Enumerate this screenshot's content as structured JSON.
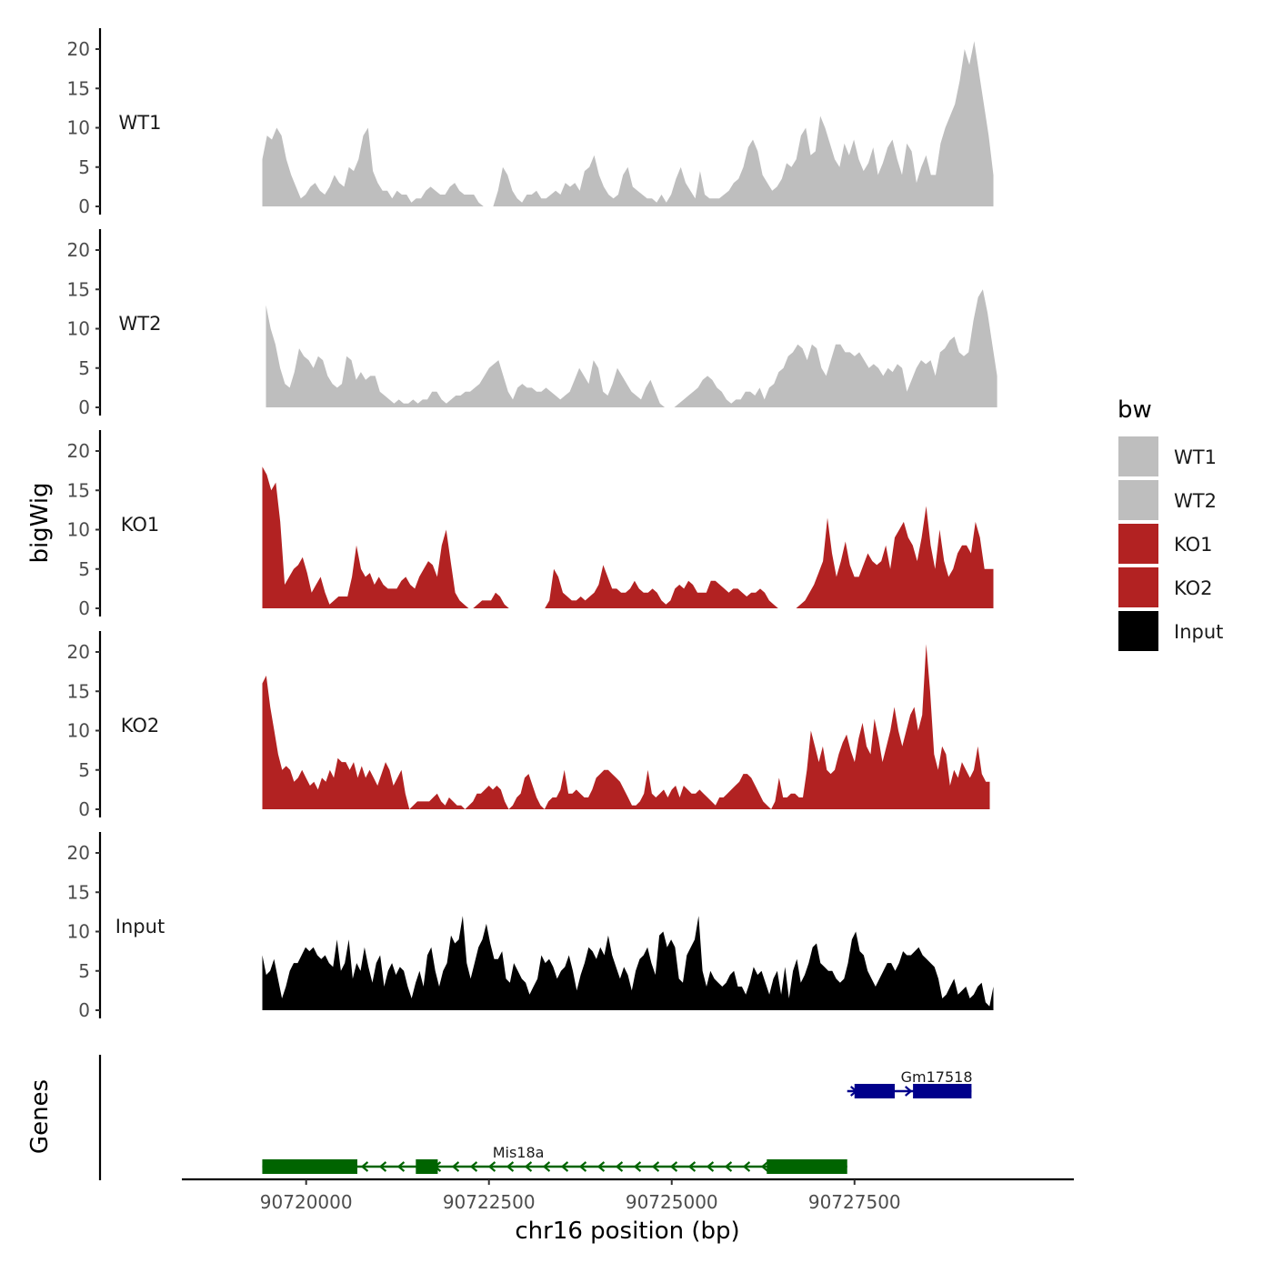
{
  "chart_data": {
    "type": "area",
    "ylabel": "bigWig",
    "xlabel": "chr16 position (bp)",
    "genes_label": "Genes",
    "xlim": [
      90718300,
      90730500
    ],
    "ylim": [
      0,
      22
    ],
    "x_ticks": [
      90720000,
      90722500,
      90725000,
      90727500
    ],
    "y_ticks": [
      0,
      5,
      10,
      15,
      20
    ],
    "legend": {
      "title": "bw",
      "entries": [
        {
          "label": "WT1",
          "color": "#bebebe"
        },
        {
          "label": "WT2",
          "color": "#bebebe"
        },
        {
          "label": "KO1",
          "color": "#b22222"
        },
        {
          "label": "KO2",
          "color": "#b22222"
        },
        {
          "label": "Input",
          "color": "#000000"
        }
      ]
    },
    "tracks": [
      {
        "name": "WT1",
        "color": "#bebebe",
        "x_start": 90719400,
        "x_end": 90729400,
        "values": [
          6,
          9,
          8.5,
          10,
          9,
          6,
          4,
          2.5,
          1,
          1.5,
          2.5,
          3,
          2,
          1.5,
          2.5,
          4,
          3,
          2.5,
          5,
          4.5,
          6,
          9,
          10,
          4.5,
          3,
          2,
          2,
          1,
          2,
          1.5,
          1.5,
          0.5,
          1,
          1,
          2,
          2.5,
          2,
          1.5,
          1.5,
          2.5,
          3,
          2,
          1.5,
          1.5,
          1.5,
          0.5,
          0,
          0,
          0,
          2,
          5,
          4,
          2,
          1,
          0.5,
          1.5,
          1.5,
          2,
          1,
          1,
          1.5,
          2,
          1.5,
          3,
          2.5,
          3,
          2,
          4.5,
          5,
          6.5,
          4,
          2.5,
          1.5,
          1,
          1.5,
          4,
          5,
          2.5,
          2,
          1.5,
          1,
          1,
          0.5,
          1.5,
          0.5,
          1.5,
          3.5,
          5,
          3,
          2,
          1,
          4.5,
          1.5,
          1,
          1,
          1,
          1.5,
          2,
          3,
          3.5,
          5,
          7.5,
          8.5,
          7,
          4,
          3,
          2,
          2.5,
          3.5,
          5.5,
          5,
          6,
          9,
          10,
          6.5,
          7,
          11.5,
          10,
          8,
          6,
          5,
          8,
          6.5,
          8.5,
          6,
          4.5,
          5.5,
          7.5,
          4,
          5.5,
          7.5,
          8.5,
          6,
          4,
          8,
          7,
          3,
          5,
          6.5,
          4,
          4,
          8,
          10,
          11.5,
          13,
          16,
          20,
          18,
          21,
          17,
          13,
          9,
          4
        ]
      },
      {
        "name": "WT2",
        "color": "#bebebe",
        "x_start": 90719450,
        "x_end": 90729450,
        "values": [
          13,
          10,
          8,
          5,
          3,
          2.5,
          4.5,
          7.5,
          6.5,
          6,
          5,
          6.5,
          6,
          4,
          3,
          2.5,
          3,
          6.5,
          6,
          3.5,
          4.5,
          3.5,
          4,
          4,
          2,
          1.5,
          1,
          0.5,
          1,
          0.5,
          0.5,
          1,
          0.5,
          1,
          1,
          2,
          2,
          1,
          0.5,
          1,
          1.5,
          1.5,
          2,
          2,
          2.5,
          3,
          4,
          5,
          5.5,
          6,
          4,
          2,
          1,
          2.5,
          3,
          2.5,
          2.5,
          2,
          2,
          2.5,
          2,
          1.5,
          1,
          1.5,
          2,
          3.5,
          5,
          4,
          3,
          6,
          5,
          2,
          1.5,
          3,
          5,
          4,
          3,
          2,
          1.5,
          1,
          2.5,
          3.5,
          2,
          0.5,
          0,
          0,
          0,
          0.5,
          1,
          1.5,
          2,
          2.5,
          3.5,
          4,
          3.5,
          2.5,
          2,
          1,
          0.5,
          1,
          1,
          2,
          2,
          1.5,
          2.5,
          1,
          2.5,
          3,
          4.5,
          5,
          6.5,
          7,
          8,
          7.5,
          6,
          8,
          7.5,
          5,
          4,
          6,
          8,
          8,
          7,
          7,
          6.5,
          7,
          6,
          5,
          5.5,
          5,
          4,
          5,
          4.5,
          5.5,
          5,
          2,
          3.5,
          5,
          6,
          5.5,
          6,
          4,
          7,
          7.5,
          8.5,
          9,
          7,
          6.5,
          7,
          11,
          14,
          15,
          12,
          8,
          4
        ]
      },
      {
        "name": "KO1",
        "color": "#b22222",
        "x_start": 90719400,
        "x_end": 90729400,
        "values": [
          18,
          17,
          15,
          16,
          11,
          3,
          4,
          5,
          5.5,
          6.5,
          4.5,
          2,
          3,
          4,
          2,
          0.5,
          1,
          1.5,
          1.5,
          1.5,
          4,
          8,
          5,
          4,
          4.5,
          3,
          4,
          3,
          2.5,
          2.5,
          2.5,
          3.5,
          4,
          3,
          2.5,
          4,
          5,
          6,
          5.5,
          4,
          8,
          10,
          6,
          2,
          1,
          0.5,
          0,
          0,
          0.5,
          1,
          1,
          1,
          2,
          1.5,
          0.5,
          0,
          0,
          0,
          0,
          0,
          0,
          0,
          0,
          0,
          1,
          5,
          4,
          2,
          1.5,
          1,
          1,
          1.5,
          1,
          1.5,
          2,
          3,
          5.5,
          4,
          2.5,
          2.5,
          2,
          2,
          2.5,
          3.5,
          2.5,
          2,
          2,
          2.5,
          2,
          1,
          0.5,
          1,
          2.5,
          3,
          2.5,
          3.5,
          3,
          2,
          2,
          2,
          3.5,
          3.5,
          3,
          2.5,
          2,
          2.5,
          2.5,
          2,
          1.5,
          2,
          2,
          2.5,
          2,
          1,
          0.5,
          0,
          0,
          0,
          0,
          0,
          0.5,
          1,
          2,
          3,
          4.5,
          6,
          11.5,
          7,
          4,
          6,
          8.5,
          5.5,
          4,
          4,
          5.5,
          7,
          6,
          5.5,
          6,
          8,
          5,
          9,
          10,
          11,
          9,
          8,
          6,
          9,
          13,
          8,
          5,
          10,
          6,
          4,
          5,
          7,
          8,
          8,
          7,
          11,
          9,
          5,
          5,
          5
        ]
      },
      {
        "name": "KO2",
        "color": "#b22222",
        "x_start": 90719400,
        "x_end": 90729350,
        "values": [
          16,
          17,
          13,
          10,
          7,
          5,
          5.5,
          5,
          3.5,
          4,
          5,
          4,
          3,
          3.5,
          2.5,
          4,
          3.5,
          5,
          4,
          6.5,
          6,
          6,
          5,
          6,
          4,
          5.5,
          4,
          5,
          4,
          3,
          4.5,
          6,
          5,
          3,
          4,
          5,
          2,
          0,
          0.5,
          1,
          1,
          1,
          1,
          1.5,
          2,
          1,
          0.5,
          1.5,
          1,
          0.5,
          0.5,
          0,
          0.5,
          1,
          2,
          2,
          2.5,
          3,
          2.5,
          3,
          2.5,
          1,
          0,
          0.5,
          1.5,
          2,
          4,
          4.5,
          3,
          1.5,
          0.5,
          0,
          1,
          1.5,
          1.5,
          2.5,
          5,
          2,
          2,
          2.5,
          2,
          1.5,
          1.5,
          2.5,
          4,
          4.5,
          5,
          5,
          4.5,
          4,
          3.5,
          2.5,
          1.5,
          0.5,
          0.5,
          1,
          2,
          5,
          2,
          1.5,
          2,
          2.5,
          1.5,
          2.5,
          3,
          1.5,
          3,
          2.5,
          2,
          2,
          2.5,
          2,
          1.5,
          1,
          0.5,
          1.5,
          1.5,
          2,
          2.5,
          3,
          3.5,
          4.5,
          4.5,
          4,
          3,
          2,
          1,
          0.5,
          0,
          1,
          4,
          1.5,
          1.5,
          2,
          2,
          1.5,
          1.5,
          5,
          10,
          8,
          6,
          8,
          5,
          4.5,
          5,
          7,
          8.5,
          9.5,
          7.5,
          6,
          9,
          11,
          8,
          7,
          11.5,
          9,
          6,
          8,
          10,
          13,
          10,
          8,
          10,
          12,
          13,
          10,
          12,
          21,
          15,
          7,
          5,
          8,
          7,
          3,
          5,
          4,
          6,
          5,
          4,
          5,
          8,
          4.5,
          3.5,
          3.5
        ]
      },
      {
        "name": "Input",
        "color": "#000000",
        "x_start": 90719400,
        "x_end": 90729400,
        "values": [
          7,
          4.5,
          5,
          6.5,
          4,
          1.5,
          3,
          5,
          6,
          6,
          7,
          8,
          7.5,
          8,
          7,
          6.5,
          7,
          6,
          5.5,
          9,
          5,
          6,
          9,
          4,
          6,
          5,
          8,
          5.5,
          3.5,
          6,
          7,
          3,
          5,
          6,
          4.5,
          5.5,
          5,
          3,
          1.5,
          3.5,
          5,
          3,
          7,
          8,
          5,
          3,
          5,
          6,
          9.5,
          8.5,
          9,
          12,
          6,
          4,
          6,
          8,
          9,
          11,
          8.5,
          6.5,
          6.5,
          7.5,
          4,
          3.5,
          6,
          5,
          4,
          3.5,
          2,
          3,
          4,
          7,
          6,
          6.5,
          5.5,
          4,
          5,
          5.5,
          7,
          5,
          2.5,
          4.5,
          6,
          8,
          7.5,
          6.5,
          8,
          7,
          9.5,
          7,
          5.5,
          4,
          5.5,
          4.5,
          2.5,
          5,
          6.5,
          7,
          8,
          6,
          4.5,
          9.5,
          10,
          8,
          9,
          8,
          4,
          3.5,
          7,
          8,
          9,
          12,
          5,
          3,
          5,
          4,
          3.5,
          3,
          3.5,
          4.5,
          5,
          3,
          3,
          2,
          3.5,
          5.5,
          4.5,
          5,
          3.5,
          2,
          4,
          5,
          2,
          5.5,
          1.5,
          5,
          6.5,
          3.5,
          4.5,
          6,
          8,
          8.5,
          6,
          5.5,
          5,
          5,
          4,
          3.5,
          4,
          6,
          9,
          10,
          7.5,
          7,
          5,
          4,
          3,
          4,
          5,
          6,
          6,
          5,
          6,
          7.5,
          7,
          7,
          7.5,
          8,
          7,
          6.5,
          6,
          5.5,
          4,
          1.5,
          2,
          3,
          4,
          2,
          2.5,
          3,
          1.5,
          2,
          3,
          3.5,
          1,
          0.5,
          3
        ]
      }
    ],
    "genes": [
      {
        "name": "Mis18a",
        "color": "#006400",
        "strand": "-",
        "start": 90719400,
        "end": 90727400,
        "exons": [
          [
            90719400,
            90720700
          ],
          [
            90721500,
            90721800
          ],
          [
            90726300,
            90727400
          ]
        ],
        "row": 1
      },
      {
        "name": "Gm17518",
        "color": "#00008b",
        "strand": "+",
        "start": 90727400,
        "end": 90729100,
        "exons": [
          [
            90727500,
            90728050
          ],
          [
            90728300,
            90729100
          ]
        ],
        "row": 2
      }
    ]
  }
}
